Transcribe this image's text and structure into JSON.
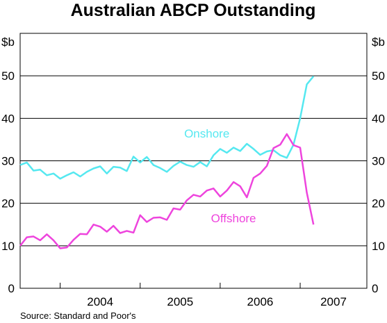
{
  "chart_data": {
    "type": "line",
    "title": "Australian ABCP Outstanding",
    "ylabel_left": "$b",
    "ylabel_right": "$b",
    "ylim": [
      0,
      60
    ],
    "yticks": [
      0,
      10,
      20,
      30,
      40,
      50
    ],
    "grid": true,
    "xlim": [
      "2003-07",
      "2007-11"
    ],
    "year_labels": [
      {
        "label": "2004",
        "start": "2004-01",
        "end": "2005-01"
      },
      {
        "label": "2005",
        "start": "2005-01",
        "end": "2006-01"
      },
      {
        "label": "2006",
        "start": "2006-01",
        "end": "2007-01"
      },
      {
        "label": "2007",
        "start": "2007-01",
        "end": "2008-01"
      }
    ],
    "source": "Source: Standard and Poor's",
    "series": [
      {
        "name": "Onshore",
        "color": "#55e8f0",
        "label_at": {
          "x": "2005-11",
          "y": 35.5
        },
        "points": [
          [
            "2003-07",
            29.0
          ],
          [
            "2003-08",
            29.6
          ],
          [
            "2003-09",
            27.7
          ],
          [
            "2003-10",
            27.9
          ],
          [
            "2003-11",
            26.6
          ],
          [
            "2003-12",
            27.0
          ],
          [
            "2004-01",
            25.8
          ],
          [
            "2004-02",
            26.6
          ],
          [
            "2004-03",
            27.3
          ],
          [
            "2004-04",
            26.3
          ],
          [
            "2004-05",
            27.4
          ],
          [
            "2004-06",
            28.2
          ],
          [
            "2004-07",
            28.7
          ],
          [
            "2004-08",
            27.0
          ],
          [
            "2004-09",
            28.6
          ],
          [
            "2004-10",
            28.4
          ],
          [
            "2004-11",
            27.6
          ],
          [
            "2004-12",
            31.0
          ],
          [
            "2005-01",
            29.6
          ],
          [
            "2005-02",
            30.9
          ],
          [
            "2005-03",
            29.0
          ],
          [
            "2005-04",
            28.3
          ],
          [
            "2005-05",
            27.4
          ],
          [
            "2005-06",
            28.8
          ],
          [
            "2005-07",
            29.8
          ],
          [
            "2005-08",
            29.0
          ],
          [
            "2005-09",
            28.6
          ],
          [
            "2005-10",
            29.7
          ],
          [
            "2005-11",
            28.7
          ],
          [
            "2005-12",
            31.3
          ],
          [
            "2006-01",
            32.8
          ],
          [
            "2006-02",
            31.9
          ],
          [
            "2006-03",
            33.1
          ],
          [
            "2006-04",
            32.3
          ],
          [
            "2006-05",
            34.0
          ],
          [
            "2006-06",
            32.8
          ],
          [
            "2006-07",
            31.4
          ],
          [
            "2006-08",
            32.2
          ],
          [
            "2006-09",
            32.5
          ],
          [
            "2006-10",
            31.3
          ],
          [
            "2006-11",
            30.7
          ],
          [
            "2006-12",
            33.8
          ],
          [
            "2007-01",
            40.0
          ],
          [
            "2007-02",
            48.0
          ],
          [
            "2007-03",
            49.9
          ]
        ]
      },
      {
        "name": "Offshore",
        "color": "#ee44dd",
        "label_at": {
          "x": "2006-03",
          "y": 15.5
        },
        "points": [
          [
            "2003-07",
            10.0
          ],
          [
            "2003-08",
            12.0
          ],
          [
            "2003-09",
            12.2
          ],
          [
            "2003-10",
            11.3
          ],
          [
            "2003-11",
            12.7
          ],
          [
            "2003-12",
            11.3
          ],
          [
            "2004-01",
            9.4
          ],
          [
            "2004-02",
            9.6
          ],
          [
            "2004-03",
            11.4
          ],
          [
            "2004-04",
            12.8
          ],
          [
            "2004-05",
            12.7
          ],
          [
            "2004-06",
            15.0
          ],
          [
            "2004-07",
            14.5
          ],
          [
            "2004-08",
            13.3
          ],
          [
            "2004-09",
            14.7
          ],
          [
            "2004-10",
            13.0
          ],
          [
            "2004-11",
            13.5
          ],
          [
            "2004-12",
            13.1
          ],
          [
            "2005-01",
            17.2
          ],
          [
            "2005-02",
            15.6
          ],
          [
            "2005-03",
            16.6
          ],
          [
            "2005-04",
            16.7
          ],
          [
            "2005-05",
            16.1
          ],
          [
            "2005-06",
            18.8
          ],
          [
            "2005-07",
            18.5
          ],
          [
            "2005-08",
            20.7
          ],
          [
            "2005-09",
            22.0
          ],
          [
            "2005-10",
            21.6
          ],
          [
            "2005-11",
            23.0
          ],
          [
            "2005-12",
            23.5
          ],
          [
            "2006-01",
            21.6
          ],
          [
            "2006-02",
            23.0
          ],
          [
            "2006-03",
            25.0
          ],
          [
            "2006-04",
            24.0
          ],
          [
            "2006-05",
            21.4
          ],
          [
            "2006-06",
            26.0
          ],
          [
            "2006-07",
            27.0
          ],
          [
            "2006-08",
            28.8
          ],
          [
            "2006-09",
            33.0
          ],
          [
            "2006-10",
            33.8
          ],
          [
            "2006-11",
            36.3
          ],
          [
            "2006-12",
            33.7
          ],
          [
            "2007-01",
            33.1
          ],
          [
            "2007-02",
            22.5
          ],
          [
            "2007-03",
            15.0
          ]
        ]
      }
    ]
  }
}
